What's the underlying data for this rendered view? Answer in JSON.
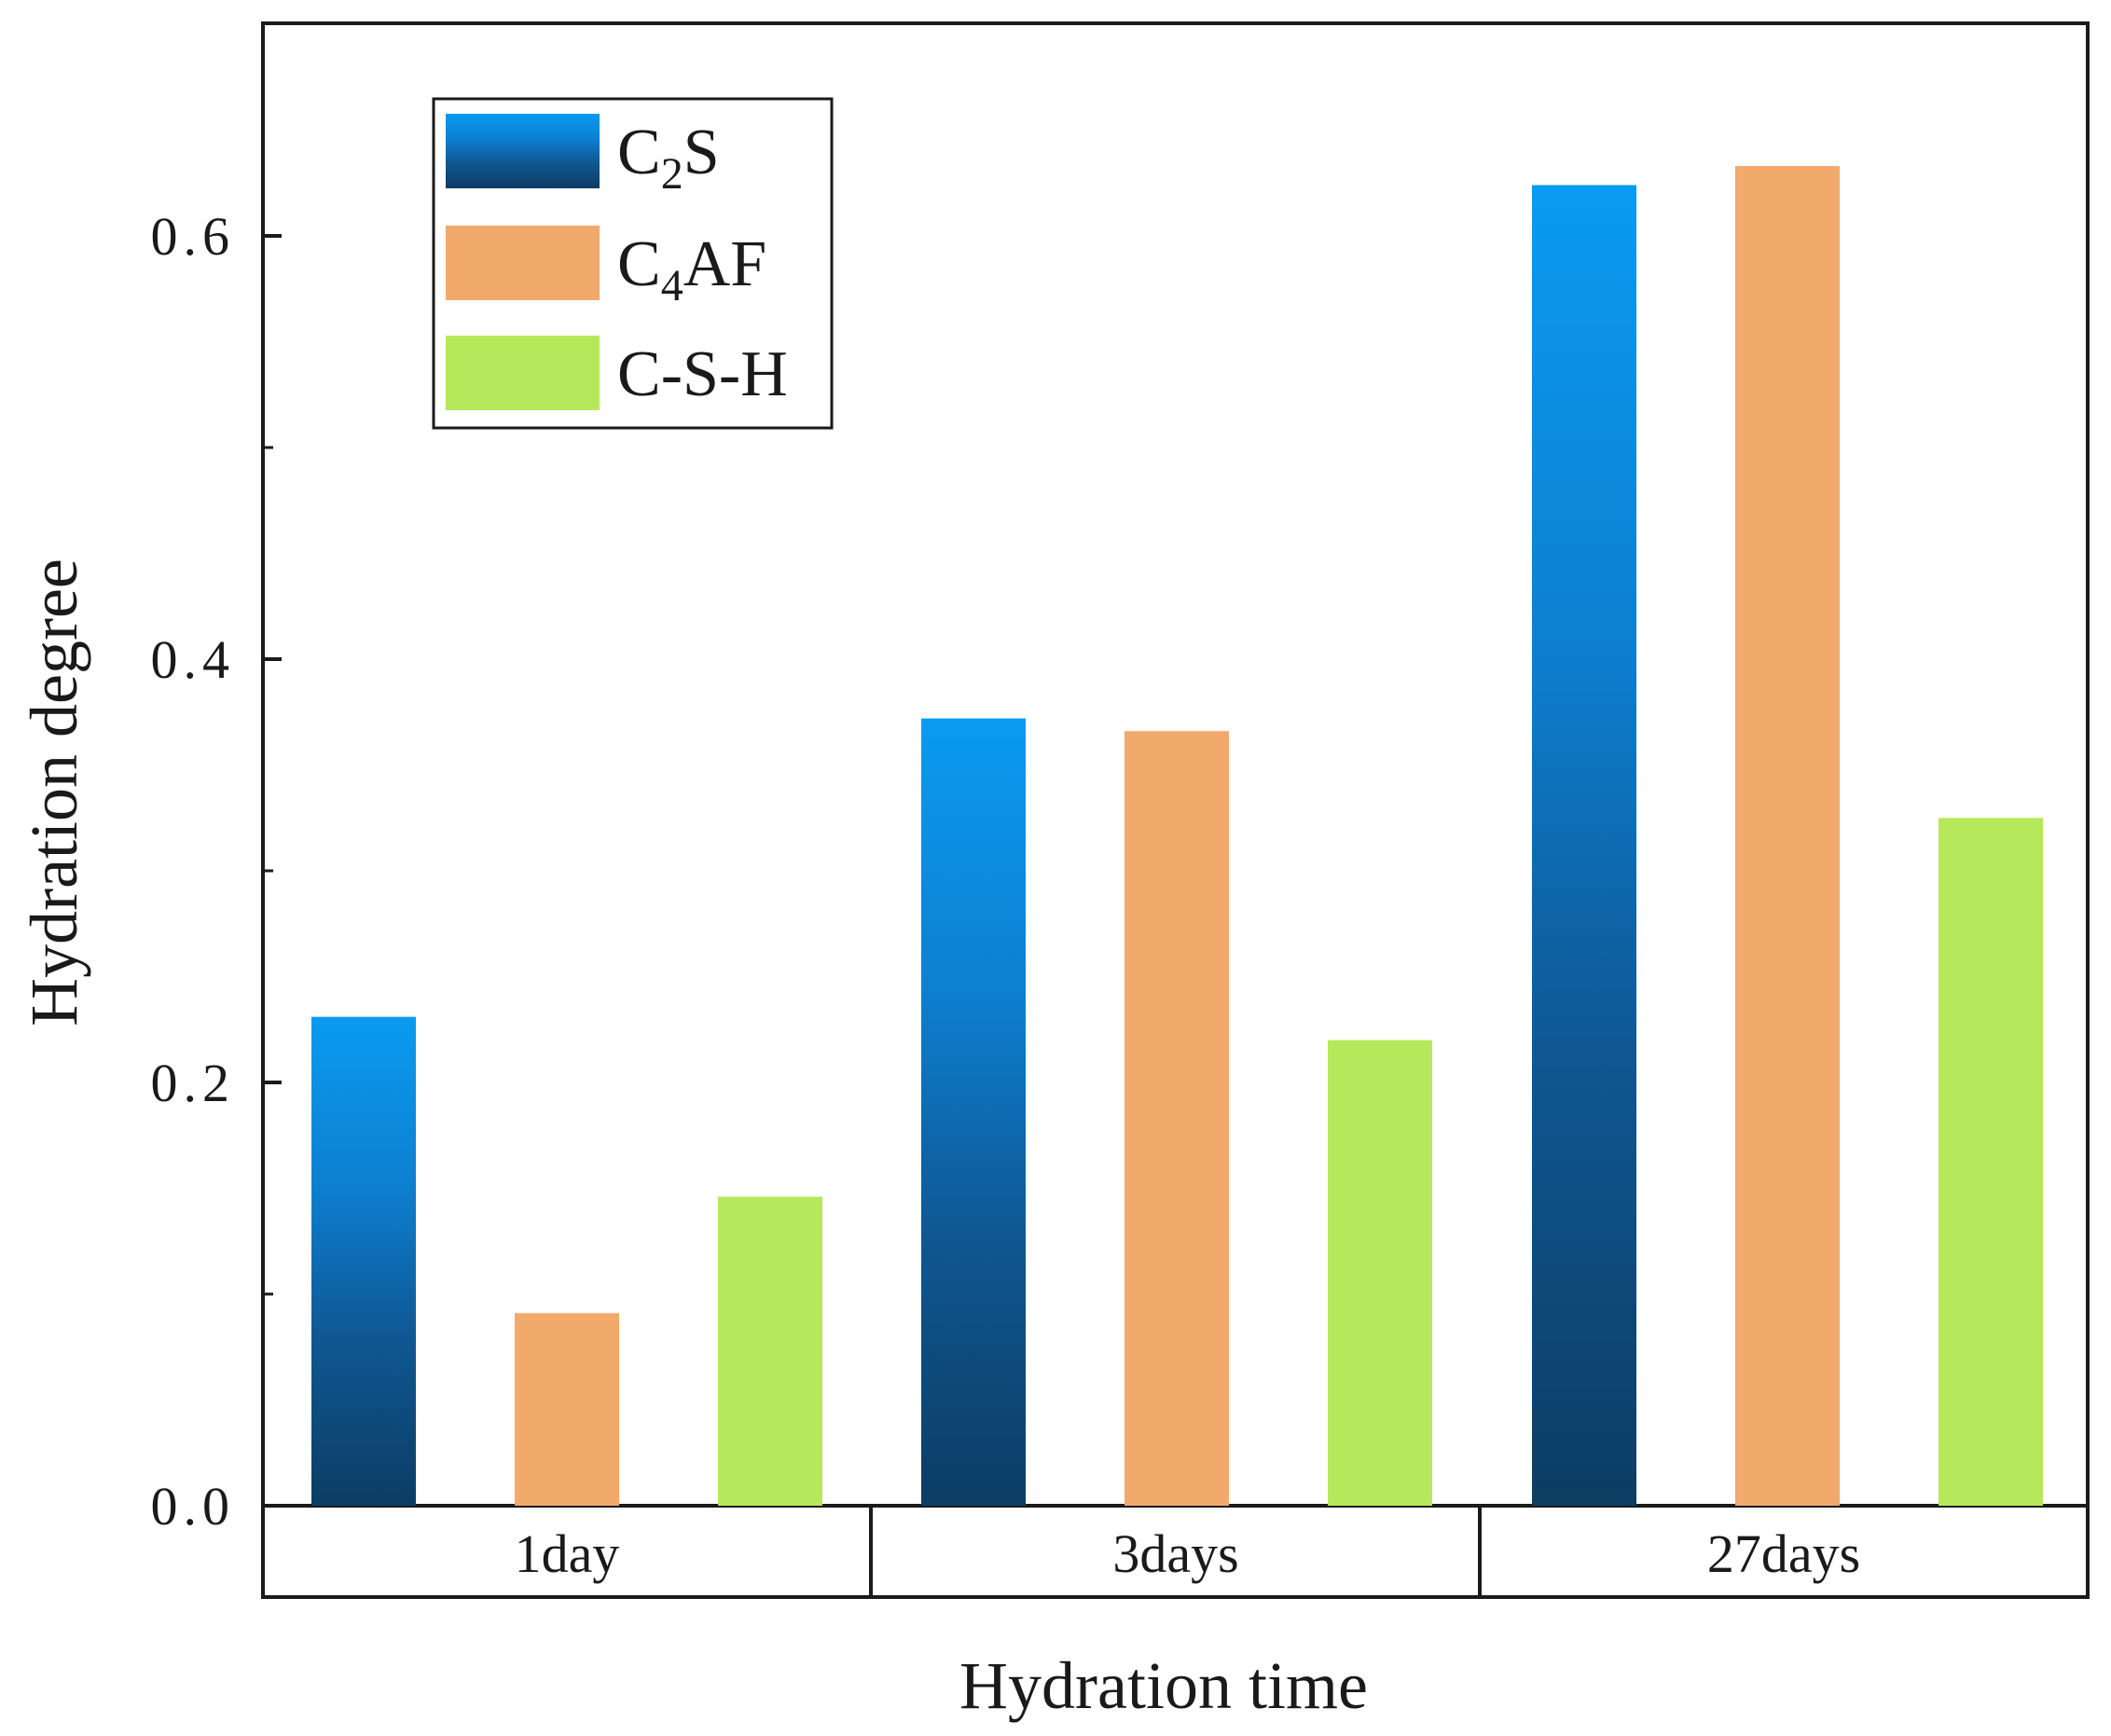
{
  "chart_data": {
    "type": "bar",
    "xlabel": "Hydration time",
    "ylabel": "Hydration degree",
    "categories": [
      "1day",
      "3days",
      "27days"
    ],
    "ylim": [
      0,
      0.7
    ],
    "yticks": [
      {
        "value": 0.0,
        "label": "0.0"
      },
      {
        "value": 0.2,
        "label": "0.2"
      },
      {
        "value": 0.4,
        "label": "0.4"
      },
      {
        "value": 0.6,
        "label": "0.6"
      }
    ],
    "series": [
      {
        "name": "C2S",
        "label_main": "C",
        "label_sub": "2",
        "label_tail": "S",
        "color_top": "#0a9bf0",
        "color_bottom": "#0c3d63",
        "values": [
          0.231,
          0.372,
          0.624
        ]
      },
      {
        "name": "C4AF",
        "label_main": "C",
        "label_sub": "4",
        "label_tail": "AF",
        "color_top": "#f2a96c",
        "color_bottom": "#f2a96c",
        "values": [
          0.091,
          0.366,
          0.633
        ]
      },
      {
        "name": "C-S-H",
        "label_main": "C-S-H",
        "label_sub": "",
        "label_tail": "",
        "color_top": "#b5e85a",
        "color_bottom": "#b5e85a",
        "values": [
          0.146,
          0.22,
          0.325
        ]
      }
    ],
    "legend_position": "top-left",
    "grid": false
  }
}
